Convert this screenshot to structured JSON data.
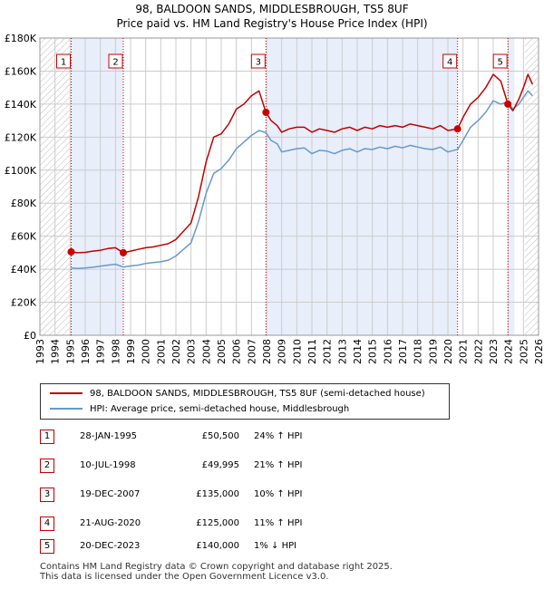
{
  "title": {
    "line1": "98, BALDOON SANDS, MIDDLESBROUGH, TS5 8UF",
    "line2": "Price paid vs. HM Land Registry's House Price Index (HPI)"
  },
  "colors": {
    "property_line": "#c00000",
    "hpi_line": "#6699cc",
    "shade": "#e8eefa",
    "hatch": "#bbbbbb",
    "grid": "#cccccc",
    "marker_line": "#cc0000"
  },
  "legend": {
    "property_label": "98, BALDOON SANDS, MIDDLESBROUGH, TS5 8UF (semi-detached house)",
    "hpi_label": "HPI: Average price, semi-detached house, Middlesbrough"
  },
  "transactions": [
    {
      "num": "1",
      "date": "28-JAN-1995",
      "price": "£50,500",
      "hpi": "24% ↑ HPI",
      "year": 1995.07,
      "value": 50500
    },
    {
      "num": "2",
      "date": "10-JUL-1998",
      "price": "£49,995",
      "hpi": "21% ↑ HPI",
      "year": 1998.52,
      "value": 49995
    },
    {
      "num": "3",
      "date": "19-DEC-2007",
      "price": "£135,000",
      "hpi": "10% ↑ HPI",
      "year": 2007.96,
      "value": 135000
    },
    {
      "num": "4",
      "date": "21-AUG-2020",
      "price": "£125,000",
      "hpi": "11% ↑ HPI",
      "year": 2020.64,
      "value": 125000
    },
    {
      "num": "5",
      "date": "20-DEC-2023",
      "price": "£140,000",
      "hpi": "1% ↓ HPI",
      "year": 2023.97,
      "value": 140000
    }
  ],
  "footer": {
    "line1": "Contains HM Land Registry data © Crown copyright and database right 2025.",
    "line2": "This data is licensed under the Open Government Licence v3.0."
  },
  "chart_data": {
    "type": "line",
    "title": "98, BALDOON SANDS, MIDDLESBROUGH, TS5 8UF",
    "subtitle": "Price paid vs. HM Land Registry's House Price Index (HPI)",
    "xlabel": "",
    "ylabel": "",
    "xlim": [
      1993,
      2026
    ],
    "ylim": [
      0,
      180000
    ],
    "grid": true,
    "legend_position": "below",
    "x_ticks": [
      "1993",
      "1994",
      "1995",
      "1996",
      "1997",
      "1998",
      "1999",
      "2000",
      "2001",
      "2002",
      "2003",
      "2004",
      "2005",
      "2006",
      "2007",
      "2008",
      "2009",
      "2010",
      "2011",
      "2012",
      "2013",
      "2014",
      "2015",
      "2016",
      "2017",
      "2018",
      "2019",
      "2020",
      "2021",
      "2022",
      "2023",
      "2024",
      "2025",
      "2026"
    ],
    "y_ticks": [
      {
        "value": 0,
        "label": "£0"
      },
      {
        "value": 20000,
        "label": "£20K"
      },
      {
        "value": 40000,
        "label": "£40K"
      },
      {
        "value": 60000,
        "label": "£60K"
      },
      {
        "value": 80000,
        "label": "£80K"
      },
      {
        "value": 100000,
        "label": "£100K"
      },
      {
        "value": 120000,
        "label": "£120K"
      },
      {
        "value": 140000,
        "label": "£140K"
      },
      {
        "value": 160000,
        "label": "£160K"
      },
      {
        "value": 180000,
        "label": "£180K"
      }
    ],
    "shaded_periods": [
      [
        1995.07,
        1998.52
      ],
      [
        2007.96,
        2020.64
      ],
      [
        2023.97,
        2024.4
      ]
    ],
    "hatched_regions": [
      [
        1993,
        1995.07
      ],
      [
        2025.1,
        2026
      ]
    ],
    "series": [
      {
        "name": "98, BALDOON SANDS, MIDDLESBROUGH, TS5 8UF (semi-detached house)",
        "x": [
          1995.07,
          1995.5,
          1996,
          1996.5,
          1997,
          1997.5,
          1998,
          1998.52,
          1999,
          1999.5,
          2000,
          2000.5,
          2001,
          2001.5,
          2002,
          2002.5,
          2003,
          2003.5,
          2004,
          2004.5,
          2005,
          2005.5,
          2006,
          2006.5,
          2007,
          2007.5,
          2007.96,
          2008.3,
          2008.7,
          2009,
          2009.5,
          2010,
          2010.5,
          2011,
          2011.5,
          2012,
          2012.5,
          2013,
          2013.5,
          2014,
          2014.5,
          2015,
          2015.5,
          2016,
          2016.5,
          2017,
          2017.5,
          2018,
          2018.5,
          2019,
          2019.5,
          2020,
          2020.64,
          2021,
          2021.5,
          2022,
          2022.5,
          2023,
          2023.5,
          2023.97,
          2024.3,
          2024.7,
          2025,
          2025.3,
          2025.6
        ],
        "values": [
          50500,
          50000,
          50200,
          51000,
          51500,
          52500,
          53000,
          49995,
          51000,
          52000,
          53000,
          53500,
          54500,
          55500,
          58000,
          63000,
          68000,
          84000,
          105000,
          120000,
          122000,
          128000,
          137000,
          140000,
          145000,
          148000,
          135000,
          130000,
          127000,
          123000,
          125000,
          126000,
          126000,
          123000,
          125000,
          124000,
          123000,
          125000,
          126000,
          124000,
          126000,
          125000,
          127000,
          126000,
          127000,
          126000,
          128000,
          127000,
          126000,
          125000,
          127000,
          124000,
          125000,
          132000,
          140000,
          144000,
          150000,
          158000,
          154000,
          140000,
          136000,
          143000,
          150000,
          158000,
          152000
        ]
      },
      {
        "name": "HPI: Average price, semi-detached house, Middlesbrough",
        "x": [
          1995.07,
          1995.5,
          1996,
          1996.5,
          1997,
          1997.5,
          1998,
          1998.52,
          1999,
          1999.5,
          2000,
          2000.5,
          2001,
          2001.5,
          2002,
          2002.5,
          2003,
          2003.5,
          2004,
          2004.5,
          2005,
          2005.5,
          2006,
          2006.5,
          2007,
          2007.5,
          2007.96,
          2008.3,
          2008.7,
          2009,
          2009.5,
          2010,
          2010.5,
          2011,
          2011.5,
          2012,
          2012.5,
          2013,
          2013.5,
          2014,
          2014.5,
          2015,
          2015.5,
          2016,
          2016.5,
          2017,
          2017.5,
          2018,
          2018.5,
          2019,
          2019.5,
          2020,
          2020.64,
          2021,
          2021.5,
          2022,
          2022.5,
          2023,
          2023.5,
          2023.97,
          2024.3,
          2024.7,
          2025,
          2025.3,
          2025.6
        ],
        "values": [
          40700,
          40500,
          40800,
          41200,
          41800,
          42500,
          43000,
          41300,
          42000,
          42500,
          43500,
          44000,
          44500,
          45500,
          48000,
          52000,
          56000,
          69000,
          86000,
          98000,
          101000,
          106000,
          113000,
          117000,
          121000,
          124000,
          122700,
          118000,
          116000,
          111000,
          112000,
          113000,
          113500,
          110000,
          112000,
          111500,
          110000,
          112000,
          113000,
          111000,
          113000,
          112500,
          114000,
          113000,
          114500,
          113500,
          115000,
          114000,
          113000,
          112500,
          114000,
          111000,
          112600,
          118000,
          126000,
          130000,
          135000,
          142000,
          140000,
          141400,
          137000,
          140000,
          144000,
          148000,
          145000
        ]
      }
    ]
  }
}
